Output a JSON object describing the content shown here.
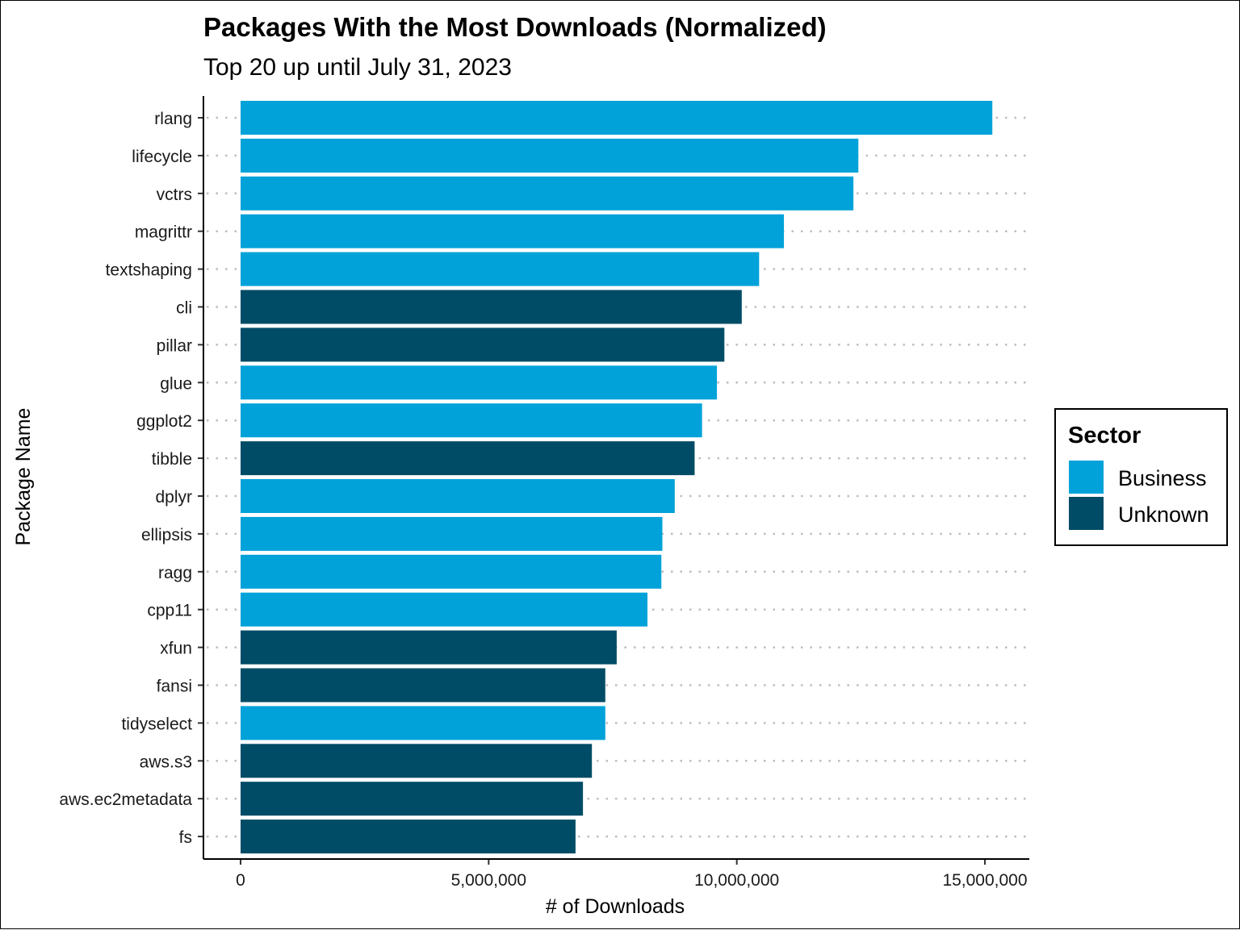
{
  "chart_data": {
    "type": "bar",
    "orientation": "horizontal",
    "title": "Packages With the Most Downloads (Normalized)",
    "subtitle": "Top 20 up until July 31, 2023",
    "xlabel": "# of Downloads",
    "ylabel": "Package Name",
    "xlim": [
      0,
      15800000
    ],
    "x_ticks": [
      0,
      5000000,
      10000000,
      15000000
    ],
    "x_tick_labels": [
      "0",
      "5,000,000",
      "10,000,000",
      "15,000,000"
    ],
    "grid": "horizontal dotted at each category",
    "legend": {
      "title": "Sector",
      "position": "right",
      "entries": [
        {
          "name": "Business",
          "color": "#00A2D9"
        },
        {
          "name": "Unknown",
          "color": "#004C66"
        }
      ]
    },
    "categories": [
      "rlang",
      "lifecycle",
      "vctrs",
      "magrittr",
      "textshaping",
      "cli",
      "pillar",
      "glue",
      "ggplot2",
      "tibble",
      "dplyr",
      "ellipsis",
      "ragg",
      "cpp11",
      "xfun",
      "fansi",
      "tidyselect",
      "aws.s3",
      "aws.ec2metadata",
      "fs"
    ],
    "values": [
      15150000,
      12450000,
      12350000,
      10950000,
      10450000,
      10100000,
      9750000,
      9600000,
      9300000,
      9150000,
      8750000,
      8500000,
      8480000,
      8200000,
      7580000,
      7350000,
      7350000,
      7080000,
      6900000,
      6750000
    ],
    "sector": [
      "Business",
      "Business",
      "Business",
      "Business",
      "Business",
      "Unknown",
      "Unknown",
      "Business",
      "Business",
      "Unknown",
      "Business",
      "Business",
      "Business",
      "Business",
      "Unknown",
      "Unknown",
      "Business",
      "Unknown",
      "Unknown",
      "Unknown"
    ]
  }
}
